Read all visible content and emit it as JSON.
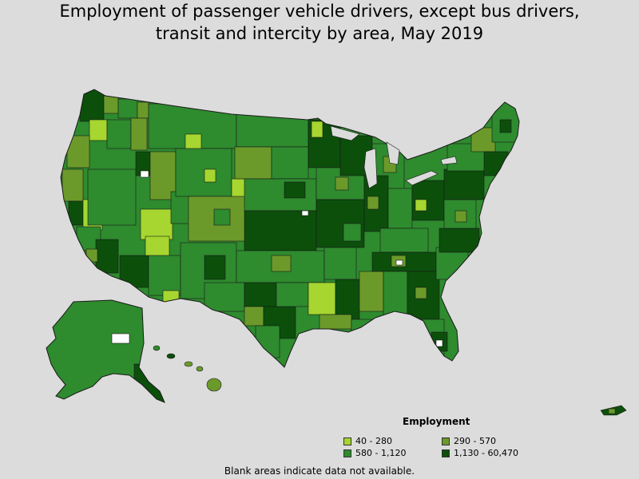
{
  "title": {
    "line1": "Employment of passenger vehicle drivers, except bus drivers,",
    "line2": "transit and intercity by area, May 2019"
  },
  "legend": {
    "title": "Employment",
    "items": [
      {
        "label": "40 - 280",
        "color": "#a6d62f"
      },
      {
        "label": "290 - 570",
        "color": "#6b9a2a"
      },
      {
        "label": "580 - 1,120",
        "color": "#2e8b2e"
      },
      {
        "label": "1,130 - 60,470",
        "color": "#0b4f0b"
      }
    ]
  },
  "footnote": "Blank areas indicate data not available.",
  "colors": {
    "background": "#dcdcdc",
    "border": "#1a1a1a",
    "blank": "#ffffff"
  }
}
